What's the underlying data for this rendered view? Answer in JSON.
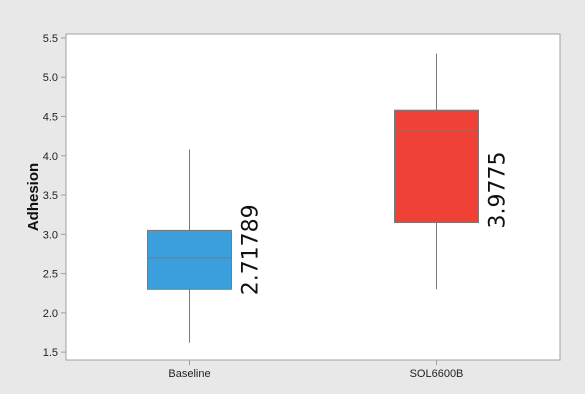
{
  "chart_data": {
    "type": "boxplot",
    "ylabel": "Adhesion",
    "xlabel": "",
    "ylim": [
      1.4,
      5.55
    ],
    "yticks": [
      1.5,
      2.0,
      2.5,
      3.0,
      3.5,
      4.0,
      4.5,
      5.0,
      5.5
    ],
    "categories": [
      "Baseline",
      "SOL6600B"
    ],
    "boxes": [
      {
        "category": "Baseline",
        "min": 1.62,
        "q1": 2.3,
        "median": 2.7,
        "q3": 3.05,
        "max": 4.08,
        "label": "2.71789",
        "color": "#3a9fdc"
      },
      {
        "category": "SOL6600B",
        "min": 2.3,
        "q1": 3.15,
        "median": 4.33,
        "q3": 4.58,
        "max": 5.3,
        "label": "3.9775",
        "color": "#ef4136"
      }
    ],
    "grid": false,
    "legend": "none"
  },
  "colors": {
    "background": "#e8e8e8",
    "plot_background": "#ffffff",
    "frame": "#a0a0a0",
    "whisker": "#7a7a7a",
    "median": "#7a7a7a"
  }
}
